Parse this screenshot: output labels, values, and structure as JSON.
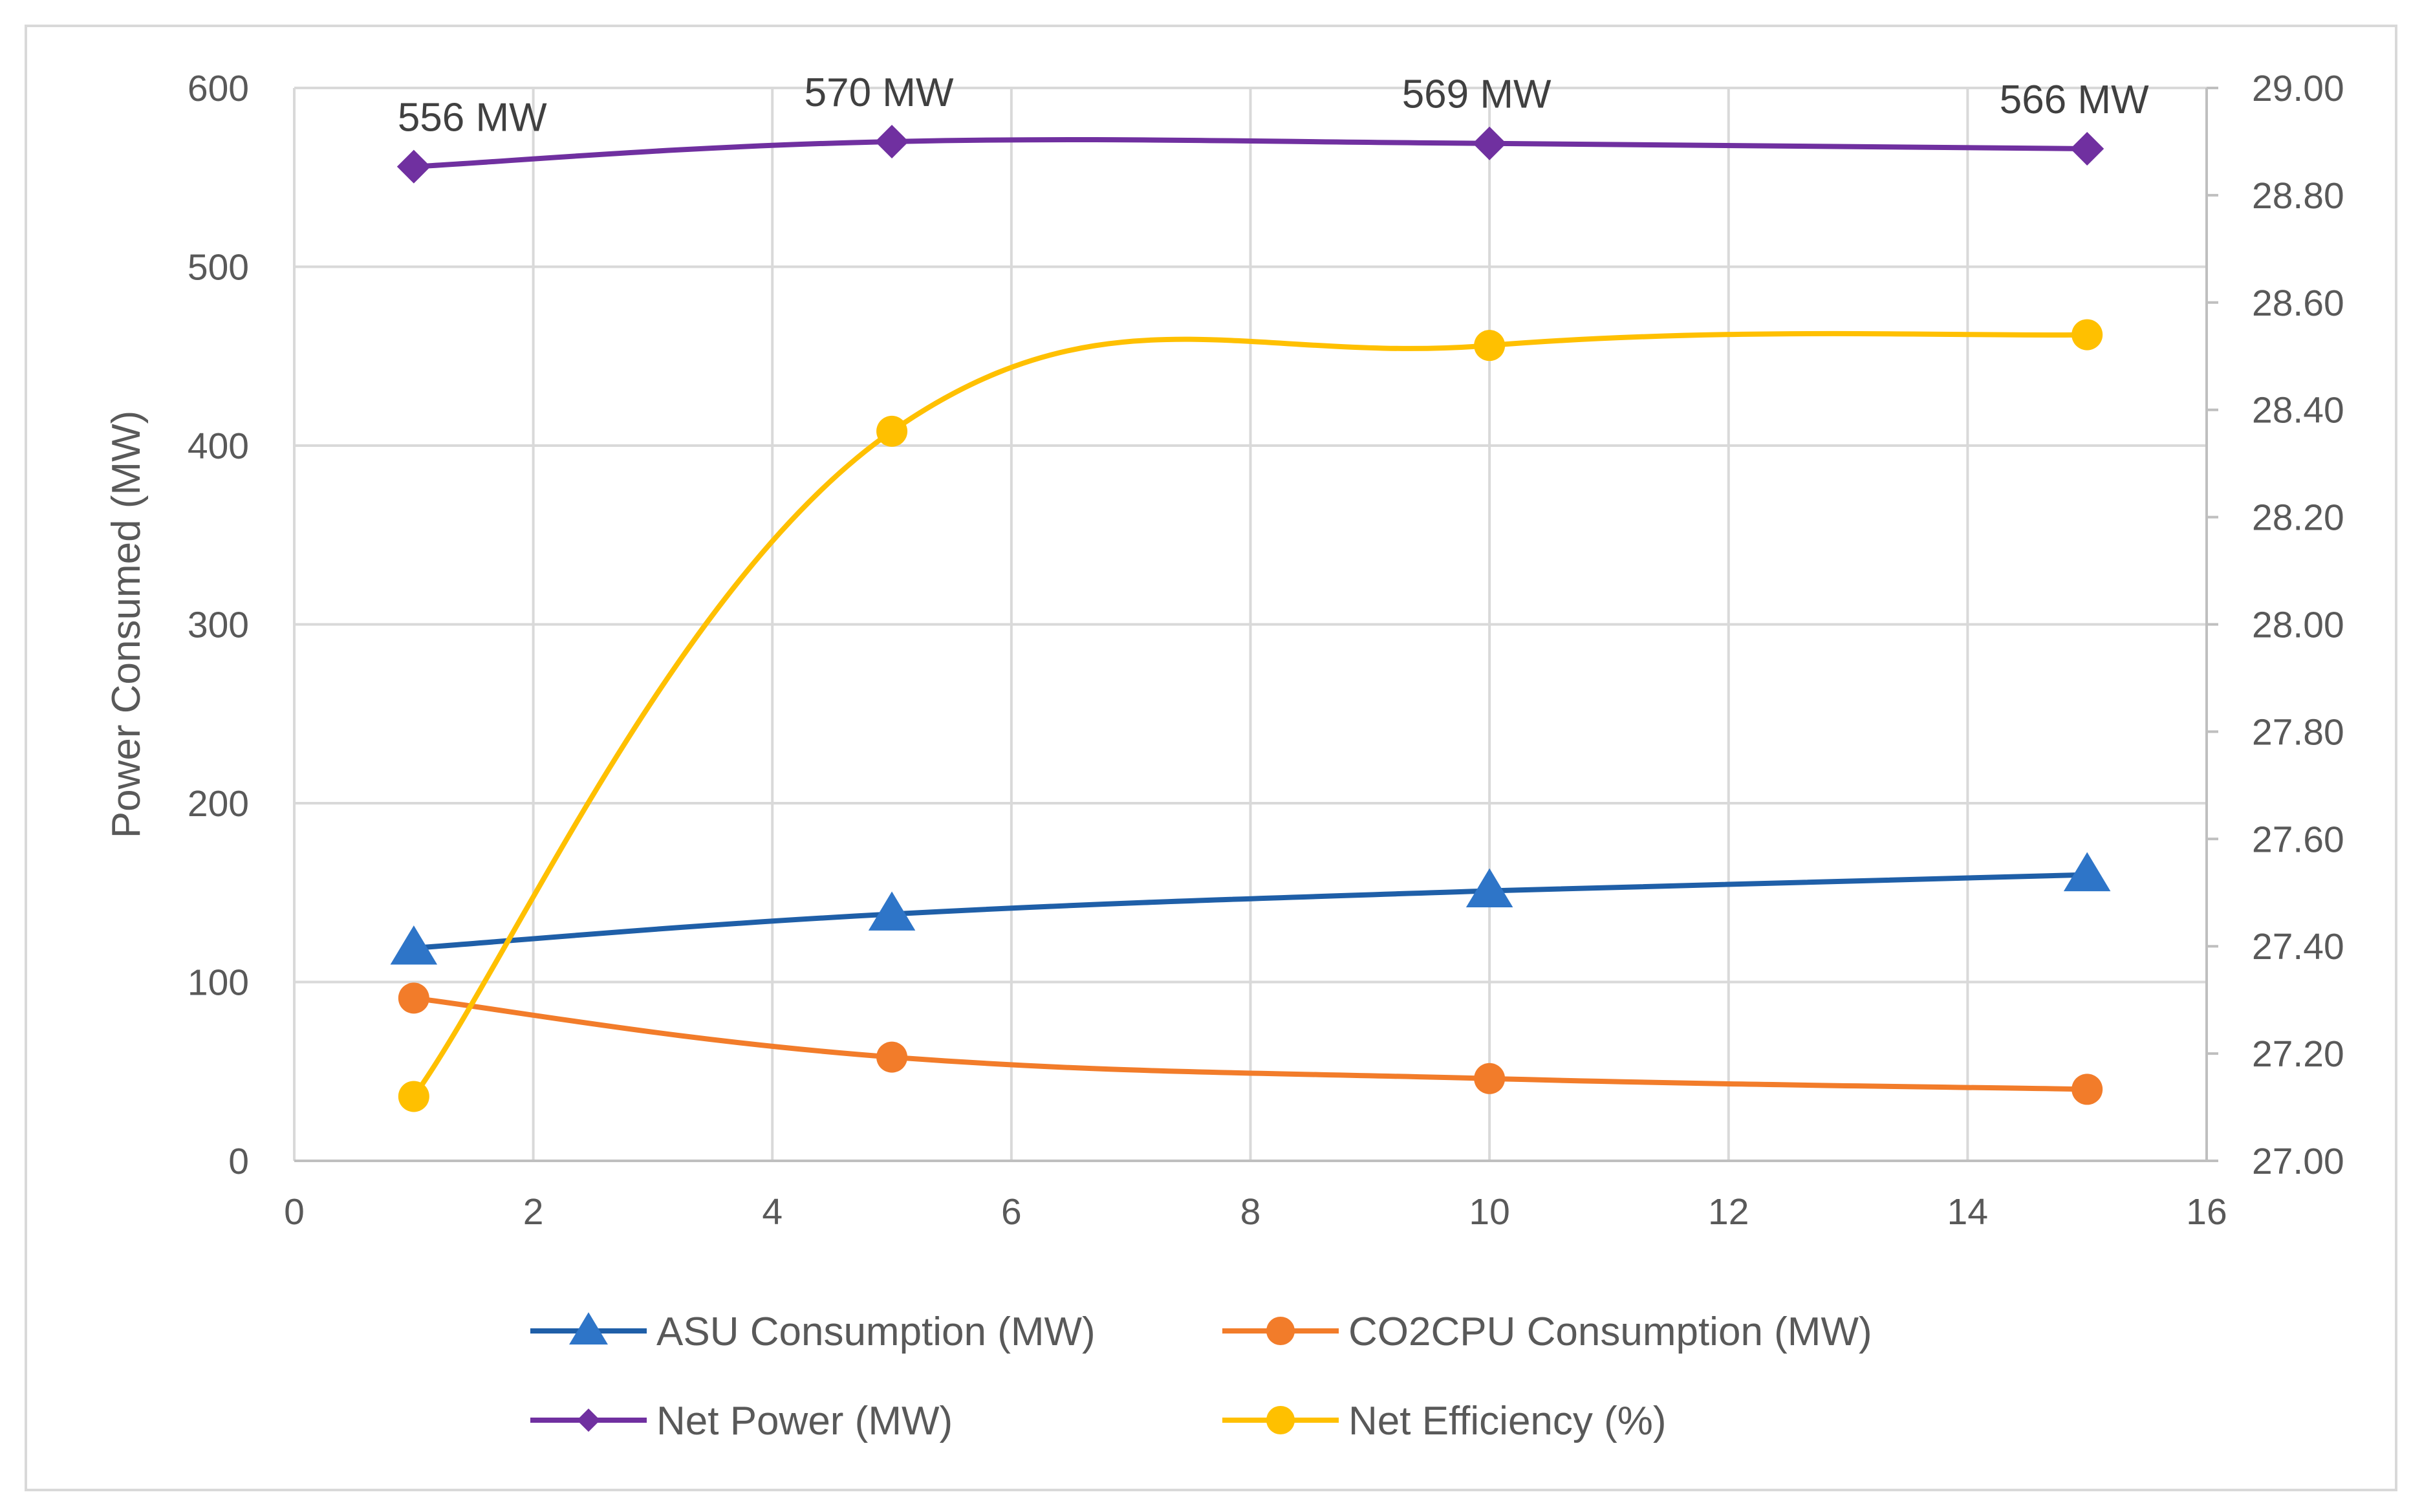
{
  "chart_data": {
    "type": "line",
    "title": "",
    "xlabel": "",
    "ylabel": "Power Consumed (MW)",
    "y2label": "",
    "xlim": [
      0,
      16
    ],
    "ylim": [
      0,
      600
    ],
    "y2lim": [
      27.0,
      29.0
    ],
    "x_ticks": [
      "0",
      "2",
      "4",
      "6",
      "8",
      "10",
      "12",
      "14",
      "16"
    ],
    "y_ticks": [
      "0",
      "100",
      "200",
      "300",
      "400",
      "500",
      "600"
    ],
    "y2_ticks": [
      "27.00",
      "27.20",
      "27.40",
      "27.60",
      "27.80",
      "28.00",
      "28.20",
      "28.40",
      "28.60",
      "28.80",
      "29.00"
    ],
    "grid": true,
    "legend_position": "bottom",
    "x": [
      1,
      5,
      10,
      15
    ],
    "series": [
      {
        "name": "ASU Consumption (MW)",
        "axis": "left",
        "marker": "triangle",
        "color": "#1F5FA8",
        "values": [
          119,
          138,
          151,
          160
        ]
      },
      {
        "name": "CO2CPU Consumption (MW)",
        "axis": "left",
        "marker": "circle",
        "color": "#F27C2A",
        "values": [
          91,
          58,
          46,
          40
        ]
      },
      {
        "name": "Net Power (MW)",
        "axis": "left",
        "marker": "diamond",
        "color": "#7030A0",
        "values": [
          556,
          570,
          569,
          566
        ],
        "data_labels": [
          "556 MW",
          "570 MW",
          "569 MW",
          "566 MW"
        ]
      },
      {
        "name": "Net Efficiency (%)",
        "axis": "right",
        "marker": "circle",
        "color": "#FFC000",
        "values": [
          27.12,
          28.36,
          28.52,
          28.54
        ]
      }
    ]
  }
}
